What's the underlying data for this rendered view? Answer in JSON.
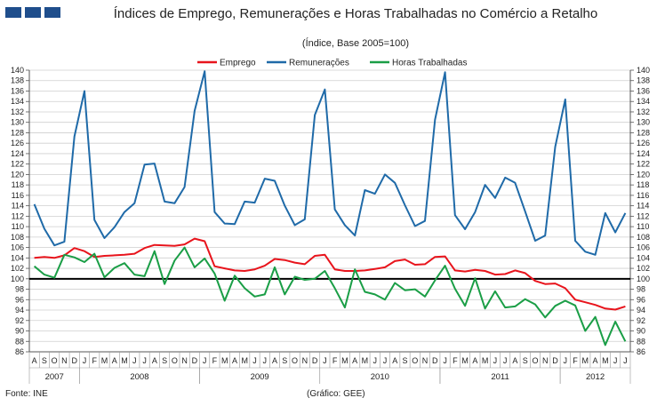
{
  "logo": {
    "icon": "ine-gee-logo-icon",
    "color": "#1f4e8c"
  },
  "title": "Índices de Emprego, Remunerações e Horas Trabalhadas no Comércio a Retalho",
  "subtitle": "(Índice, Base 2005=100)",
  "source": "Fonte: INE",
  "credit": "(Gráfico: GEE)",
  "chart_data": {
    "type": "line",
    "title": "Índices de Emprego, Remunerações e Horas Trabalhadas no Comércio a Retalho",
    "subtitle": "(Índice, Base 2005=100)",
    "ylim": [
      86,
      140
    ],
    "yticks": [
      86,
      88,
      90,
      92,
      94,
      96,
      98,
      100,
      102,
      104,
      106,
      108,
      110,
      112,
      114,
      116,
      118,
      120,
      122,
      124,
      126,
      128,
      130,
      132,
      134,
      136,
      138,
      140
    ],
    "reference_line": 100,
    "grid": true,
    "legend_position": "top",
    "months": [
      "A",
      "S",
      "O",
      "N",
      "D",
      "J",
      "F",
      "M",
      "A",
      "M",
      "J",
      "J",
      "A",
      "S",
      "O",
      "N",
      "D",
      "J",
      "F",
      "M",
      "A",
      "M",
      "J",
      "J",
      "A",
      "S",
      "O",
      "N",
      "D",
      "J",
      "F",
      "M",
      "A",
      "M",
      "J",
      "J",
      "A",
      "S",
      "O",
      "N",
      "D",
      "J",
      "F",
      "M",
      "A",
      "M",
      "J",
      "J",
      "A",
      "S",
      "O",
      "N",
      "D",
      "J",
      "F",
      "M",
      "A",
      "M",
      "J",
      "J"
    ],
    "years": [
      {
        "label": "2007",
        "start": 0,
        "count": 5
      },
      {
        "label": "2008",
        "start": 5,
        "count": 12
      },
      {
        "label": "2009",
        "start": 17,
        "count": 12
      },
      {
        "label": "2010",
        "start": 29,
        "count": 12
      },
      {
        "label": "2011",
        "start": 41,
        "count": 12
      },
      {
        "label": "2012",
        "start": 53,
        "count": 7
      }
    ],
    "series": [
      {
        "name": "Emprego",
        "color": "#e8141c",
        "values": [
          104.0,
          104.2,
          104.0,
          104.5,
          105.9,
          105.3,
          104.2,
          104.4,
          104.5,
          104.6,
          104.8,
          105.9,
          106.5,
          106.4,
          106.3,
          106.6,
          107.7,
          107.2,
          102.4,
          102.0,
          101.6,
          101.5,
          101.8,
          102.5,
          103.8,
          103.6,
          103.1,
          102.8,
          104.4,
          104.6,
          101.8,
          101.5,
          101.5,
          101.6,
          101.9,
          102.2,
          103.4,
          103.7,
          102.7,
          102.8,
          104.2,
          104.3,
          101.6,
          101.4,
          101.7,
          101.5,
          100.8,
          100.9,
          101.6,
          101.1,
          99.6,
          99.0,
          99.1,
          98.2,
          96.0,
          95.5,
          95.0,
          94.3,
          94.1,
          94.7
        ]
      },
      {
        "name": "Remunerações",
        "color": "#1f6aa8",
        "values": [
          114.3,
          109.6,
          106.4,
          107.1,
          127.3,
          136.0,
          111.3,
          107.8,
          109.9,
          112.8,
          114.5,
          121.9,
          122.1,
          114.8,
          114.5,
          117.6,
          132.2,
          139.8,
          112.8,
          110.6,
          110.5,
          114.8,
          114.6,
          119.2,
          118.8,
          114.0,
          110.3,
          111.4,
          131.4,
          136.3,
          113.3,
          110.3,
          108.3,
          117.0,
          116.3,
          120.0,
          118.4,
          114.1,
          110.1,
          111.1,
          130.5,
          139.6,
          112.2,
          109.5,
          112.8,
          118.0,
          115.5,
          119.4,
          118.4,
          112.9,
          107.3,
          108.3,
          125.3,
          134.4,
          107.3,
          105.2,
          104.6,
          112.6,
          108.9,
          112.6
        ]
      },
      {
        "name": "Horas Trabalhadas",
        "color": "#1a9e46",
        "values": [
          102.4,
          100.8,
          100.2,
          104.6,
          104.1,
          103.2,
          104.8,
          100.3,
          102.1,
          103.0,
          100.8,
          100.5,
          105.3,
          99.0,
          103.5,
          106.0,
          102.2,
          103.9,
          101.0,
          95.8,
          100.6,
          98.2,
          96.6,
          97.0,
          102.2,
          97.0,
          100.4,
          99.8,
          100.0,
          101.5,
          98.2,
          94.5,
          101.8,
          97.5,
          97.0,
          96.0,
          99.2,
          97.8,
          98.0,
          96.6,
          99.7,
          102.5,
          98.1,
          94.8,
          100.1,
          94.3,
          97.6,
          94.5,
          94.7,
          96.1,
          95.1,
          92.6,
          94.8,
          95.8,
          94.9,
          90.0,
          92.7,
          87.3,
          91.8,
          88.0
        ]
      }
    ]
  }
}
